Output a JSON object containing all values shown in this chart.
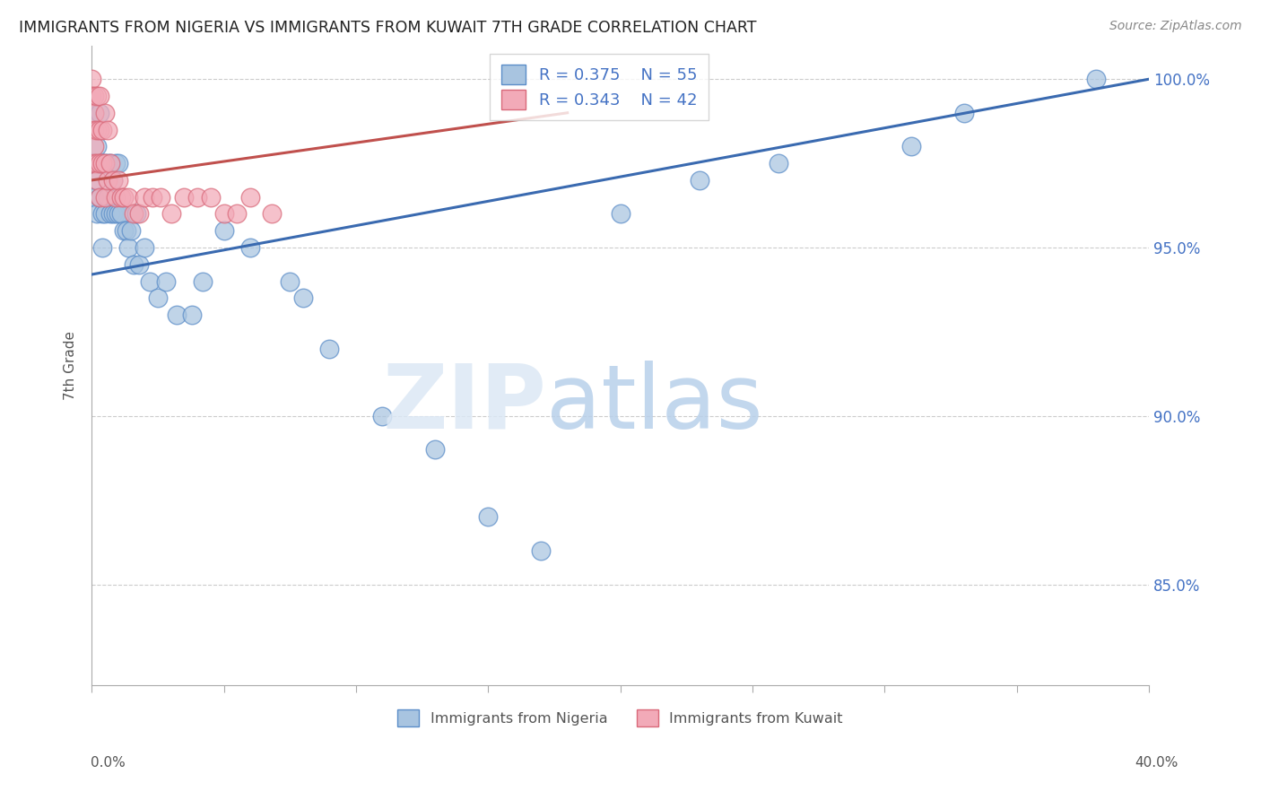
{
  "title": "IMMIGRANTS FROM NIGERIA VS IMMIGRANTS FROM KUWAIT 7TH GRADE CORRELATION CHART",
  "source": "Source: ZipAtlas.com",
  "ylabel": "7th Grade",
  "xlim": [
    0.0,
    0.4
  ],
  "ylim": [
    0.82,
    1.01
  ],
  "y_ticks": [
    0.85,
    0.9,
    0.95,
    1.0
  ],
  "y_tick_labels": [
    "85.0%",
    "90.0%",
    "95.0%",
    "100.0%"
  ],
  "legend1_label": "R = 0.375    N = 55",
  "legend2_label": "R = 0.343    N = 42",
  "nigeria_color": "#a8c4e0",
  "kuwait_color": "#f2aab8",
  "nigeria_edge_color": "#5b8dc8",
  "kuwait_edge_color": "#d9697a",
  "nigeria_line_color": "#3a6ab0",
  "kuwait_line_color": "#c0504d",
  "nigeria_scatter_x": [
    0.0,
    0.001,
    0.001,
    0.001,
    0.002,
    0.002,
    0.002,
    0.003,
    0.003,
    0.003,
    0.004,
    0.004,
    0.004,
    0.005,
    0.005,
    0.006,
    0.006,
    0.007,
    0.007,
    0.008,
    0.008,
    0.009,
    0.009,
    0.01,
    0.01,
    0.011,
    0.012,
    0.013,
    0.014,
    0.015,
    0.016,
    0.017,
    0.018,
    0.02,
    0.022,
    0.025,
    0.028,
    0.032,
    0.038,
    0.042,
    0.05,
    0.06,
    0.075,
    0.08,
    0.09,
    0.11,
    0.13,
    0.15,
    0.17,
    0.2,
    0.23,
    0.26,
    0.31,
    0.33,
    0.38
  ],
  "nigeria_scatter_y": [
    0.975,
    0.99,
    0.975,
    0.965,
    0.98,
    0.97,
    0.96,
    0.99,
    0.975,
    0.965,
    0.975,
    0.96,
    0.95,
    0.975,
    0.96,
    0.975,
    0.965,
    0.975,
    0.96,
    0.97,
    0.96,
    0.975,
    0.96,
    0.975,
    0.96,
    0.96,
    0.955,
    0.955,
    0.95,
    0.955,
    0.945,
    0.96,
    0.945,
    0.95,
    0.94,
    0.935,
    0.94,
    0.93,
    0.93,
    0.94,
    0.955,
    0.95,
    0.94,
    0.935,
    0.92,
    0.9,
    0.89,
    0.87,
    0.86,
    0.96,
    0.97,
    0.975,
    0.98,
    0.99,
    1.0
  ],
  "kuwait_scatter_x": [
    0.0,
    0.0,
    0.001,
    0.001,
    0.001,
    0.001,
    0.001,
    0.002,
    0.002,
    0.002,
    0.002,
    0.003,
    0.003,
    0.003,
    0.003,
    0.004,
    0.004,
    0.005,
    0.005,
    0.005,
    0.006,
    0.006,
    0.007,
    0.008,
    0.009,
    0.01,
    0.011,
    0.012,
    0.014,
    0.016,
    0.018,
    0.02,
    0.023,
    0.026,
    0.03,
    0.035,
    0.04,
    0.045,
    0.05,
    0.055,
    0.06,
    0.068
  ],
  "kuwait_scatter_y": [
    1.0,
    0.995,
    0.995,
    0.99,
    0.985,
    0.98,
    0.975,
    0.995,
    0.985,
    0.975,
    0.97,
    0.995,
    0.985,
    0.975,
    0.965,
    0.985,
    0.975,
    0.99,
    0.975,
    0.965,
    0.985,
    0.97,
    0.975,
    0.97,
    0.965,
    0.97,
    0.965,
    0.965,
    0.965,
    0.96,
    0.96,
    0.965,
    0.965,
    0.965,
    0.96,
    0.965,
    0.965,
    0.965,
    0.96,
    0.96,
    0.965,
    0.96
  ],
  "nig_line_x0": 0.0,
  "nig_line_x1": 0.4,
  "nig_line_y0": 0.942,
  "nig_line_y1": 1.0,
  "kuw_line_x0": 0.0,
  "kuw_line_x1": 0.18,
  "kuw_line_y0": 0.97,
  "kuw_line_y1": 0.99
}
